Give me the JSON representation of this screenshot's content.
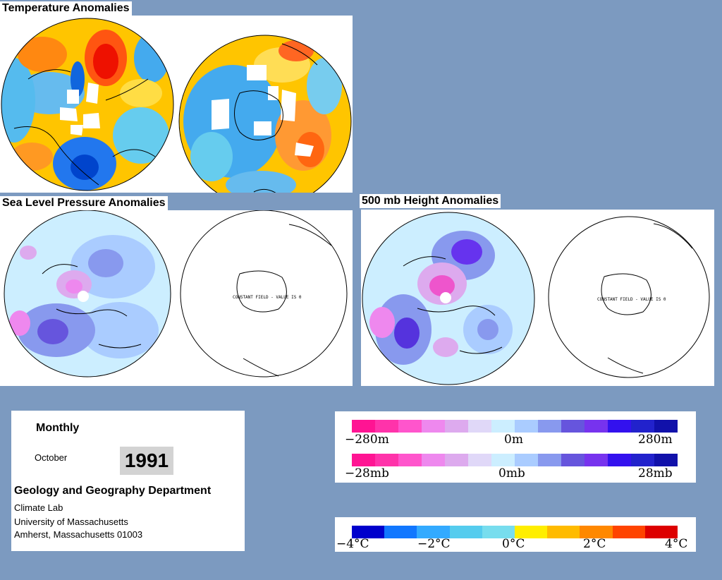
{
  "sections": {
    "temperature_title": "Temperature Anomalies",
    "slp_title": "Sea Level Pressure Anomalies",
    "height_title": "500 mb Height Anomalies"
  },
  "maps": {
    "constant_field_note": "CONSTANT FIELD - VALUE IS 0"
  },
  "info": {
    "period": "Monthly",
    "month": "October",
    "year": "1991",
    "department": "Geology and Geography Department",
    "lab": "Climate Lab",
    "university": "University of Massachusetts",
    "address": "Amherst, Massachusetts 01003"
  },
  "legends": {
    "height": {
      "min_label": "−280m",
      "mid_label": "0m",
      "max_label": "280m"
    },
    "pressure": {
      "min_label": "−28mb",
      "mid_label": "0mb",
      "max_label": "28mb"
    },
    "temperature": {
      "labels": [
        "−4°C",
        "−2°C",
        "0°C",
        "2°C",
        "4°C"
      ]
    }
  },
  "colors": {
    "background": "#7c9ac0",
    "anomaly_scale": [
      "#ff1493",
      "#ff33aa",
      "#ff55cc",
      "#ee88ee",
      "#ddaaee",
      "#e0d8f8",
      "#cceeff",
      "#aaccff",
      "#8899ee",
      "#6655dd",
      "#7733ee",
      "#3311ee",
      "#2222cc",
      "#1111aa"
    ],
    "temperature_scale": [
      "#0000cc",
      "#1177ff",
      "#33aaff",
      "#55ccee",
      "#77ddee",
      "#ffee00",
      "#ffbb00",
      "#ff8800",
      "#ff4400",
      "#dd0000"
    ]
  }
}
